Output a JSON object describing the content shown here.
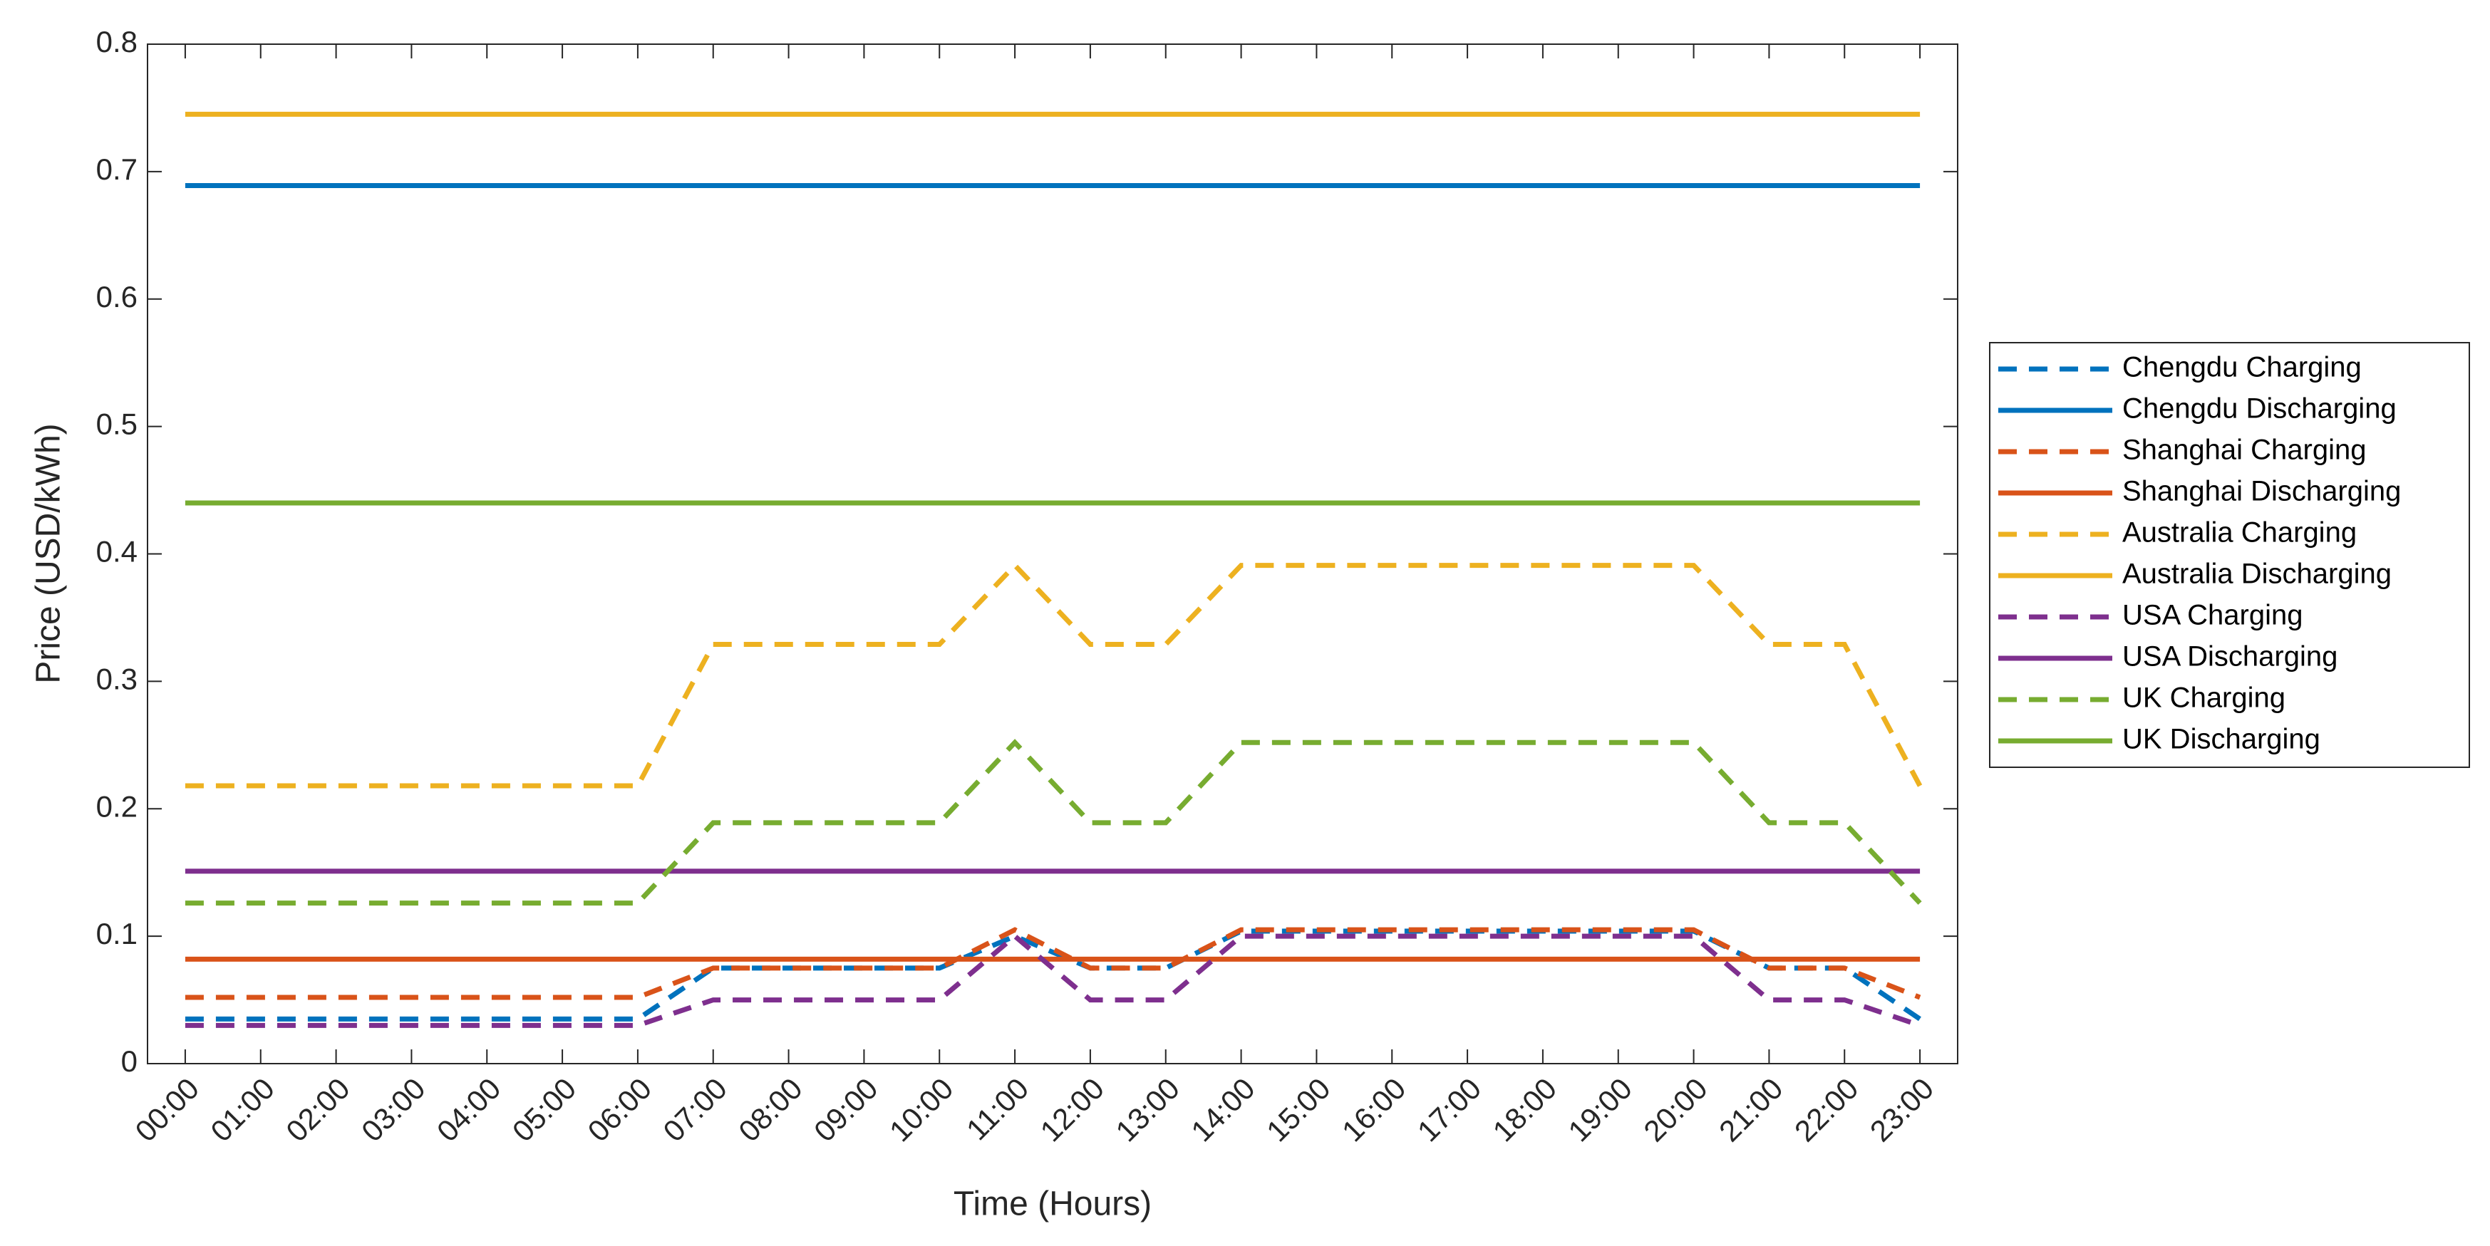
{
  "chart_data": {
    "type": "line",
    "x_label": "Time (Hours)",
    "y_label": "Price (USD/kWh)",
    "categories": [
      "00:00",
      "01:00",
      "02:00",
      "03:00",
      "04:00",
      "05:00",
      "06:00",
      "07:00",
      "08:00",
      "09:00",
      "10:00",
      "11:00",
      "12:00",
      "13:00",
      "14:00",
      "15:00",
      "16:00",
      "17:00",
      "18:00",
      "19:00",
      "20:00",
      "21:00",
      "22:00",
      "23:00"
    ],
    "ylim": [
      0,
      0.8
    ],
    "yticks": [
      0,
      0.1,
      0.2,
      0.3,
      0.4,
      0.5,
      0.6,
      0.7,
      0.8
    ],
    "grid": false,
    "legend": "outside-right",
    "series": [
      {
        "name": "Chengdu Charging",
        "color": "#0072BD",
        "style": "dashed",
        "values": [
          0.035,
          0.035,
          0.035,
          0.035,
          0.035,
          0.035,
          0.035,
          0.075,
          0.075,
          0.075,
          0.075,
          0.1,
          0.075,
          0.075,
          0.104,
          0.104,
          0.104,
          0.104,
          0.104,
          0.104,
          0.104,
          0.075,
          0.075,
          0.035
        ]
      },
      {
        "name": "Chengdu Discharging",
        "color": "#0072BD",
        "style": "solid",
        "values": [
          0.689,
          0.689,
          0.689,
          0.689,
          0.689,
          0.689,
          0.689,
          0.689,
          0.689,
          0.689,
          0.689,
          0.689,
          0.689,
          0.689,
          0.689,
          0.689,
          0.689,
          0.689,
          0.689,
          0.689,
          0.689,
          0.689,
          0.689,
          0.689
        ]
      },
      {
        "name": "Shanghai Charging",
        "color": "#D95319",
        "style": "dashed",
        "values": [
          0.052,
          0.052,
          0.052,
          0.052,
          0.052,
          0.052,
          0.052,
          0.075,
          0.075,
          0.075,
          0.075,
          0.105,
          0.075,
          0.075,
          0.105,
          0.105,
          0.105,
          0.105,
          0.105,
          0.105,
          0.105,
          0.075,
          0.075,
          0.052
        ]
      },
      {
        "name": "Shanghai Discharging",
        "color": "#D95319",
        "style": "solid",
        "values": [
          0.082,
          0.082,
          0.082,
          0.082,
          0.082,
          0.082,
          0.082,
          0.082,
          0.082,
          0.082,
          0.082,
          0.082,
          0.082,
          0.082,
          0.082,
          0.082,
          0.082,
          0.082,
          0.082,
          0.082,
          0.082,
          0.082,
          0.082,
          0.082
        ]
      },
      {
        "name": "Australia Charging",
        "color": "#EDB120",
        "style": "dashed",
        "values": [
          0.218,
          0.218,
          0.218,
          0.218,
          0.218,
          0.218,
          0.218,
          0.329,
          0.329,
          0.329,
          0.329,
          0.391,
          0.329,
          0.329,
          0.391,
          0.391,
          0.391,
          0.391,
          0.391,
          0.391,
          0.391,
          0.329,
          0.329,
          0.218
        ]
      },
      {
        "name": "Australia Discharging",
        "color": "#EDB120",
        "style": "solid",
        "values": [
          0.745,
          0.745,
          0.745,
          0.745,
          0.745,
          0.745,
          0.745,
          0.745,
          0.745,
          0.745,
          0.745,
          0.745,
          0.745,
          0.745,
          0.745,
          0.745,
          0.745,
          0.745,
          0.745,
          0.745,
          0.745,
          0.745,
          0.745,
          0.745
        ]
      },
      {
        "name": "USA Charging",
        "color": "#7E2F8E",
        "style": "dashed",
        "values": [
          0.03,
          0.03,
          0.03,
          0.03,
          0.03,
          0.03,
          0.03,
          0.05,
          0.05,
          0.05,
          0.05,
          0.1,
          0.05,
          0.05,
          0.1,
          0.1,
          0.1,
          0.1,
          0.1,
          0.1,
          0.1,
          0.05,
          0.05,
          0.03
        ]
      },
      {
        "name": "USA Discharging",
        "color": "#7E2F8E",
        "style": "solid",
        "values": [
          0.151,
          0.151,
          0.151,
          0.151,
          0.151,
          0.151,
          0.151,
          0.151,
          0.151,
          0.151,
          0.151,
          0.151,
          0.151,
          0.151,
          0.151,
          0.151,
          0.151,
          0.151,
          0.151,
          0.151,
          0.151,
          0.151,
          0.151,
          0.151
        ]
      },
      {
        "name": "UK Charging",
        "color": "#77AC30",
        "style": "dashed",
        "values": [
          0.126,
          0.126,
          0.126,
          0.126,
          0.126,
          0.126,
          0.126,
          0.189,
          0.189,
          0.189,
          0.189,
          0.252,
          0.189,
          0.189,
          0.252,
          0.252,
          0.252,
          0.252,
          0.252,
          0.252,
          0.252,
          0.189,
          0.189,
          0.126
        ]
      },
      {
        "name": "UK Discharging",
        "color": "#77AC30",
        "style": "solid",
        "values": [
          0.44,
          0.44,
          0.44,
          0.44,
          0.44,
          0.44,
          0.44,
          0.44,
          0.44,
          0.44,
          0.44,
          0.44,
          0.44,
          0.44,
          0.44,
          0.44,
          0.44,
          0.44,
          0.44,
          0.44,
          0.44,
          0.44,
          0.44,
          0.44
        ]
      }
    ]
  }
}
